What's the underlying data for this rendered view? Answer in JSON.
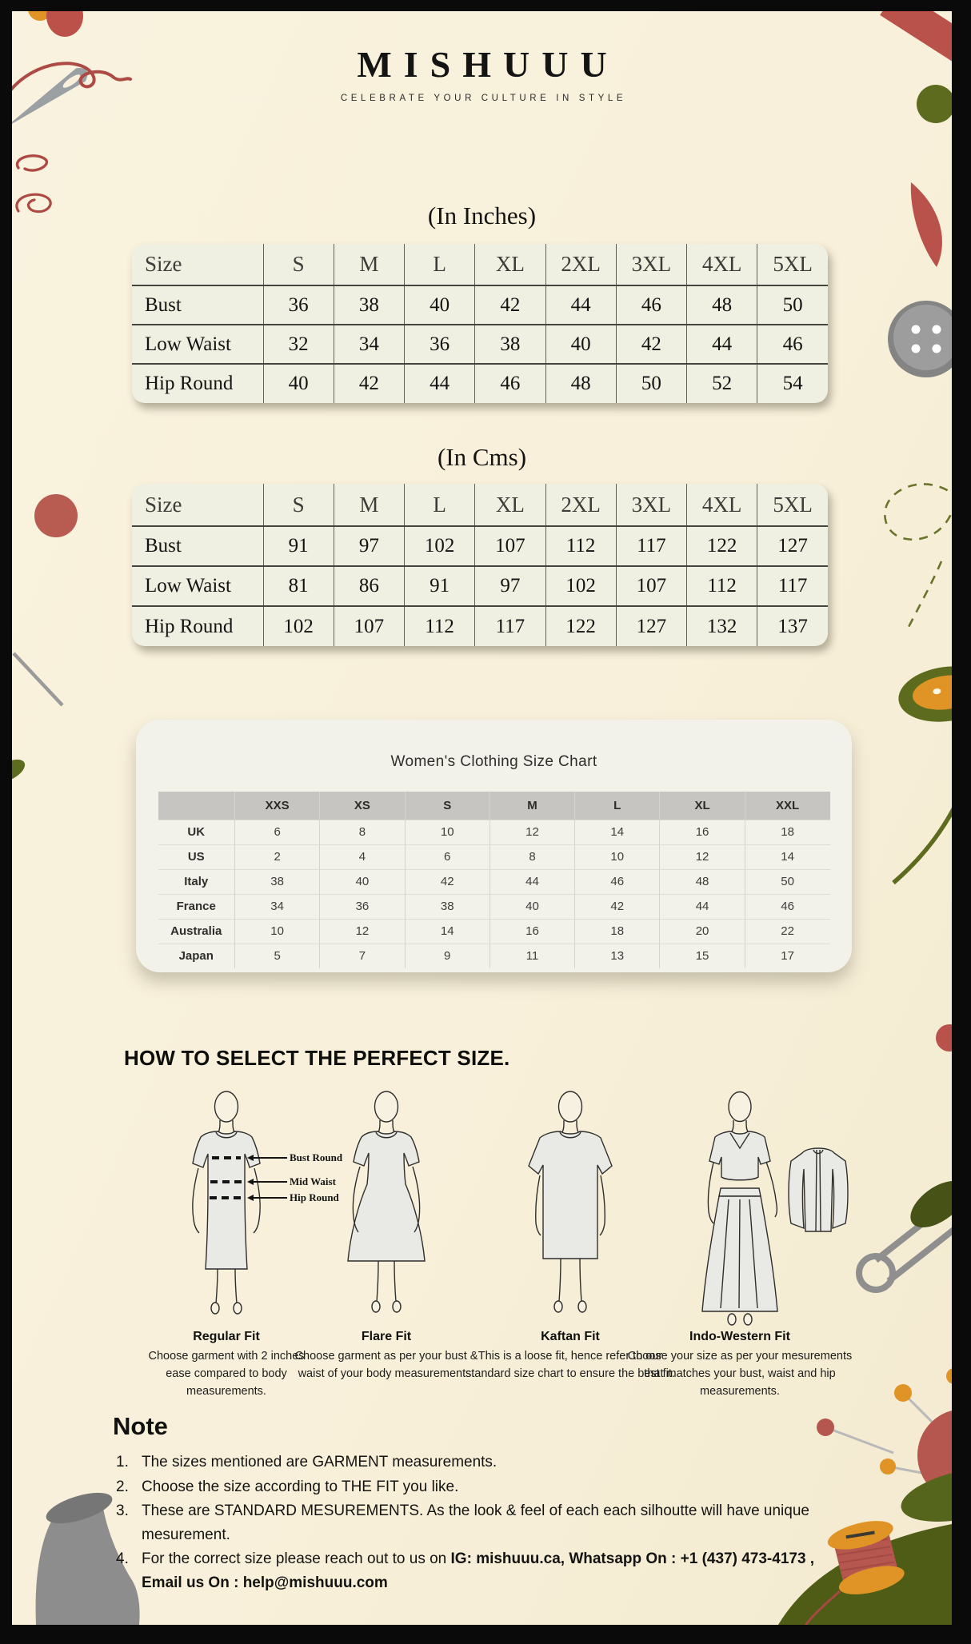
{
  "brand": {
    "name": "MISHUUU",
    "tagline": "CELEBRATE YOUR CULTURE IN STYLE"
  },
  "inches_table": {
    "title": "(In Inches)",
    "header": [
      "Size",
      "S",
      "M",
      "L",
      "XL",
      "2XL",
      "3XL",
      "4XL",
      "5XL"
    ],
    "rows": [
      [
        "Bust",
        "36",
        "38",
        "40",
        "42",
        "44",
        "46",
        "48",
        "50"
      ],
      [
        "Low Waist",
        "32",
        "34",
        "36",
        "38",
        "40",
        "42",
        "44",
        "46"
      ],
      [
        "Hip Round",
        "40",
        "42",
        "44",
        "46",
        "48",
        "50",
        "52",
        "54"
      ]
    ]
  },
  "cms_table": {
    "title": "(In Cms)",
    "header": [
      "Size",
      "S",
      "M",
      "L",
      "XL",
      "2XL",
      "3XL",
      "4XL",
      "5XL"
    ],
    "rows": [
      [
        "Bust",
        "91",
        "97",
        "102",
        "107",
        "112",
        "117",
        "122",
        "127"
      ],
      [
        "Low Waist",
        "81",
        "86",
        "91",
        "97",
        "102",
        "107",
        "112",
        "117"
      ],
      [
        "Hip Round",
        "102",
        "107",
        "112",
        "117",
        "122",
        "127",
        "132",
        "137"
      ]
    ]
  },
  "womens_chart": {
    "title": "Women's Clothing Size Chart",
    "header": [
      "",
      "XXS",
      "XS",
      "S",
      "M",
      "L",
      "XL",
      "XXL"
    ],
    "rows": [
      [
        "UK",
        "6",
        "8",
        "10",
        "12",
        "14",
        "16",
        "18"
      ],
      [
        "US",
        "2",
        "4",
        "6",
        "8",
        "10",
        "12",
        "14"
      ],
      [
        "Italy",
        "38",
        "40",
        "42",
        "44",
        "46",
        "48",
        "50"
      ],
      [
        "France",
        "34",
        "36",
        "38",
        "40",
        "42",
        "44",
        "46"
      ],
      [
        "Australia",
        "10",
        "12",
        "14",
        "16",
        "18",
        "20",
        "22"
      ],
      [
        "Japan",
        "5",
        "7",
        "9",
        "11",
        "13",
        "15",
        "17"
      ]
    ]
  },
  "how_to": {
    "heading": "HOW TO SELECT THE PERFECT SIZE.",
    "annotations": [
      "Bust Round",
      "Mid Waist",
      "Hip Round"
    ],
    "fits": [
      {
        "name": "Regular Fit",
        "desc": "Choose garment with 2 inches ease compared to body measurements."
      },
      {
        "name": "Flare Fit",
        "desc": "Choose garment as per your bust & waist of your body measurements."
      },
      {
        "name": "Kaftan Fit",
        "desc": "This is a loose fit, hence refer to our standard size chart to ensure the best fit."
      },
      {
        "name": "Indo-Western Fit",
        "desc": "Choose your size as per your mesurements that matches your bust, waist and hip measurements."
      }
    ]
  },
  "note": {
    "heading": "Note",
    "item1": "The sizes mentioned are GARMENT measurements.",
    "item2": "Choose the size according to THE FIT you like.",
    "item3": "These are STANDARD MESUREMENTS. As the look & feel of each each silhoutte will have unique mesurement.",
    "item4_plain": "For the correct size please reach out to us on ",
    "item4_bold": "IG: mishuuu.ca, Whatsapp On : +1 (437) 473-4173 , Email us On : help@mishuuu.com"
  },
  "palette": {
    "frame": "#0a0a0a",
    "background": "#f8f0da",
    "table_card": "#f0f0e2",
    "womens_card": "#f2f1ea",
    "header_gray": "#c6c5c1",
    "red": "#b9524a",
    "olive": "#5c6b1d",
    "orange": "#e09426",
    "gray": "#8f8f8f",
    "thread_red": "#a84a42"
  }
}
